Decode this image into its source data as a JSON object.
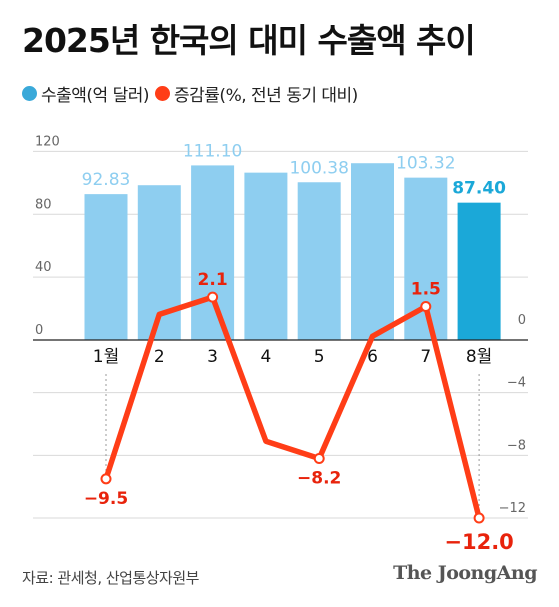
{
  "title": "2025년 한국의 대미 수출액 추이",
  "legend": [
    {
      "label": "수출액(억 달러)",
      "color": "#3aa9d9"
    },
    {
      "label": "증감률(%, 전년 동기 대비)",
      "color": "#ff3d17"
    }
  ],
  "source": "자료: 관세청, 산업통상자원부",
  "brand": "The JoongAng",
  "chart_data": {
    "type": "bar",
    "categories": [
      "1월",
      "2",
      "3",
      "4",
      "5",
      "6",
      "7",
      "8월"
    ],
    "series": [
      {
        "name": "수출액(억 달러)",
        "type": "bar",
        "values": [
          92.83,
          98.5,
          111.1,
          106.5,
          100.38,
          112.5,
          103.32,
          87.4
        ],
        "labels": [
          "92.83",
          "",
          "111.10",
          "",
          "100.38",
          "",
          "103.32",
          "87.40"
        ],
        "color": "#8ecef0",
        "highlight_color": "#1ba8d8",
        "highlight_index": 7,
        "axis": "left",
        "ylim": [
          0,
          140
        ],
        "ticks": [
          0,
          40,
          80,
          120
        ]
      },
      {
        "name": "증감률(%, 전년 동기 대비)",
        "type": "line",
        "values": [
          -9.5,
          1.0,
          2.1,
          -7.1,
          -8.2,
          -0.4,
          1.5,
          -12.0
        ],
        "labels": [
          "-9.5",
          "",
          "2.1",
          "",
          "-8.2",
          "",
          "1.5",
          "-12.0"
        ],
        "color": "#ff3d17",
        "axis": "right",
        "ylim": [
          -12,
          2
        ],
        "ticks": [
          0,
          -4,
          -8,
          -12
        ]
      }
    ],
    "grid": true
  },
  "label_colors": {
    "bar_label": "#8ecef0",
    "bar_label_highlight": "#1ba8d8",
    "line_label": "#e8230c"
  }
}
